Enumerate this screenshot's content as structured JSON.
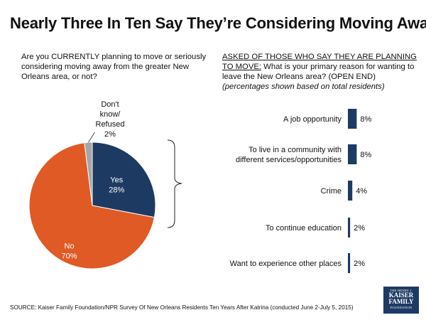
{
  "title": "Nearly Three In Ten Say They’re Considering Moving Away",
  "left_question": "Are you CURRENTLY planning to move or seriously considering moving away from the greater New Orleans area, or not?",
  "right_question": {
    "underlined": "ASKED OF THOSE WHO SAY THEY ARE PLANNING TO MOVE:",
    "text": " What is your primary reason for wanting to leave the New Orleans area? (OPEN END)",
    "note": "(percentages shown based on total residents)"
  },
  "chart_data": [
    {
      "type": "pie",
      "slices": [
        {
          "label": "Yes",
          "value": 28,
          "value_label": "28%",
          "color": "#1d3a63"
        },
        {
          "label": "No",
          "value": 70,
          "value_label": "70%",
          "color": "#e05a26"
        },
        {
          "label_lines": [
            "Don't",
            "know/",
            "Refused"
          ],
          "value": 2,
          "value_label": "2%",
          "color": "#a6a6a6"
        }
      ]
    },
    {
      "type": "bar",
      "orientation": "horizontal",
      "color": "#1d3a63",
      "categories": [
        [
          "A job opportunity"
        ],
        [
          "To live in a community with",
          "different services/opportunities"
        ],
        [
          "Crime"
        ],
        [
          "To continue education"
        ],
        [
          "Want to experience other places"
        ]
      ],
      "values": [
        8,
        8,
        4,
        2,
        2
      ],
      "value_labels": [
        "8%",
        "8%",
        "4%",
        "2%",
        "2%"
      ]
    }
  ],
  "source": "SOURCE: Kaiser Family Foundation/NPR Survey Of New Orleans Residents Ten Years After Katrina (conducted June 2-July 5, 2015)",
  "logo": {
    "top": "THE HENRY J.",
    "name_line1": "KAISER",
    "name_line2": "FAMILY",
    "bottom": "FOUNDATION"
  }
}
